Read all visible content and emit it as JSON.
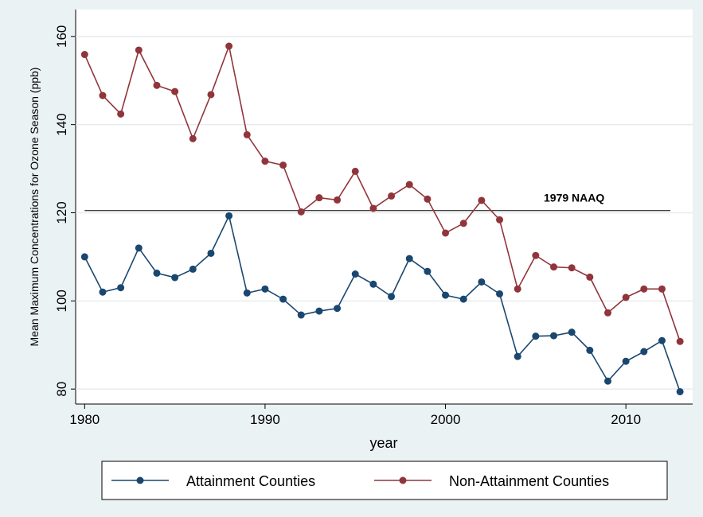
{
  "chart_data": {
    "type": "line",
    "x_label": "year",
    "y_label": "Mean Maximum Concentrations for Ozone Season (ppb)",
    "x": [
      1980,
      1981,
      1982,
      1983,
      1984,
      1985,
      1986,
      1987,
      1988,
      1989,
      1990,
      1991,
      1992,
      1993,
      1994,
      1995,
      1996,
      1997,
      1998,
      1999,
      2000,
      2001,
      2002,
      2003,
      2004,
      2005,
      2006,
      2007,
      2008,
      2009,
      2010,
      2011,
      2012,
      2013
    ],
    "series": [
      {
        "name": "Attainment Counties",
        "color": "#1a476f",
        "values": [
          110,
          102,
          103,
          112,
          106.3,
          105.3,
          107.2,
          110.8,
          119.3,
          101.8,
          102.7,
          100.4,
          96.8,
          97.7,
          98.3,
          106.1,
          103.8,
          101,
          109.6,
          106.7,
          101.3,
          100.4,
          104.3,
          101.6,
          87.4,
          92,
          92.1,
          92.9,
          88.8,
          81.8,
          86.3,
          88.5,
          91,
          79.4
        ]
      },
      {
        "name": "Non-Attainment Counties",
        "color": "#90353b",
        "values": [
          155.9,
          146.6,
          142.4,
          156.9,
          148.9,
          147.5,
          136.8,
          146.8,
          157.8,
          137.7,
          131.7,
          130.8,
          120.2,
          123.4,
          122.9,
          129.4,
          121,
          123.8,
          126.4,
          123.1,
          115.4,
          117.6,
          122.8,
          118.4,
          102.7,
          110.3,
          107.7,
          107.5,
          105.4,
          97.3,
          100.8,
          102.7,
          102.7,
          90.8
        ]
      }
    ],
    "reference_line": {
      "value": 120.5,
      "label": "1979 NAAQ"
    },
    "xlim": [
      1979.5,
      2013.7
    ],
    "xticks": [
      1980,
      1990,
      2000,
      2010
    ],
    "ylim": [
      76.6,
      166.1
    ],
    "yticks": [
      80,
      100,
      120,
      140,
      160
    ],
    "grid": true,
    "legend": "bottom"
  }
}
